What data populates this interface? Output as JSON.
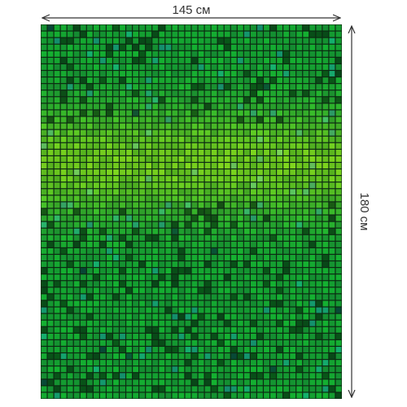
{
  "dimensions": {
    "width": "145 см",
    "height": "180 см"
  }
}
